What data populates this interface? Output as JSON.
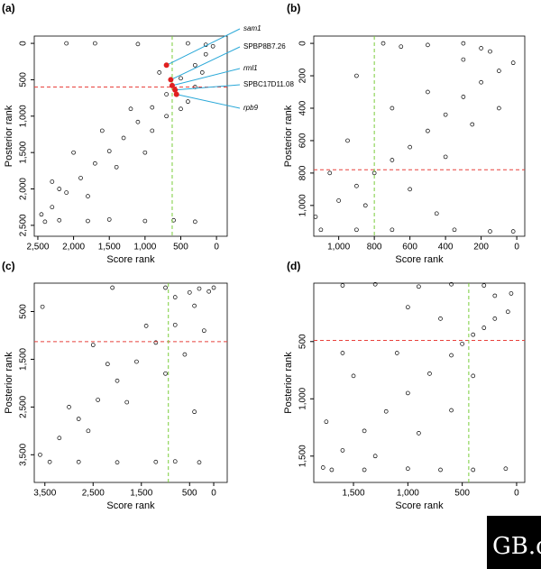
{
  "chart_data": [
    {
      "type": "scatter",
      "label": "(a)",
      "xlabel": "Score rank",
      "ylabel": "Posterior rank",
      "color": "#000000",
      "xlim": [
        2550,
        -150
      ],
      "ylim": [
        2650,
        -100
      ],
      "xticks": [
        {
          "value": 2500,
          "label": "2,500"
        },
        {
          "value": 2000,
          "label": "2,000"
        },
        {
          "value": 1500,
          "label": "1,500"
        },
        {
          "value": 1000,
          "label": "1,000"
        },
        500,
        0
      ],
      "yticks": [
        0,
        500,
        {
          "value": 1000,
          "label": "1,000"
        },
        {
          "value": 1500,
          "label": "1,500"
        },
        {
          "value": 2000,
          "label": "2,000"
        },
        {
          "value": 2500,
          "label": "2,500"
        }
      ],
      "x": [
        2450,
        2300,
        2100,
        1900,
        1700,
        1500,
        1300,
        1100,
        900,
        700,
        500,
        300,
        150,
        50,
        2400,
        2200,
        1800,
        1500,
        1000,
        600,
        300,
        2100,
        1700,
        1100,
        400,
        150,
        2300,
        2000,
        1800,
        1400,
        1200,
        900,
        700,
        500,
        800,
        400,
        300,
        200,
        1600,
        1000,
        2200
      ],
      "y": [
        2350,
        2250,
        2050,
        1850,
        1650,
        1480,
        1300,
        1080,
        880,
        700,
        480,
        300,
        150,
        40,
        2450,
        2430,
        2440,
        2420,
        2440,
        2430,
        2450,
        0,
        0,
        10,
        0,
        20,
        1900,
        1500,
        2100,
        1700,
        900,
        1200,
        1000,
        900,
        400,
        800,
        600,
        400,
        1200,
        1500,
        2000
      ],
      "hline": {
        "value": 600,
        "color": "#e8413c"
      },
      "vline": {
        "value": 620,
        "color": "#7acc3a"
      },
      "annotations": [
        {
          "text": "sam1",
          "x": 700,
          "y": 300,
          "style": "italic"
        },
        {
          "text": "SPBP8B7.26",
          "x": 640,
          "y": 500,
          "style": "normal"
        },
        {
          "text": "rml1",
          "x": 620,
          "y": 580,
          "style": "italic"
        },
        {
          "text": "SPBC17D11.08",
          "x": 580,
          "y": 640,
          "style": "normal"
        },
        {
          "text": "rpb9",
          "x": 560,
          "y": 700,
          "style": "italic"
        }
      ],
      "annotation_color": "#29a8d8",
      "highlight_color": "#e02020"
    },
    {
      "type": "scatter",
      "label": "(b)",
      "xlabel": "Score rank",
      "ylabel": "Posterior rank",
      "color": "#000000",
      "xlim": [
        1140,
        -45
      ],
      "ylim": [
        1190,
        -45
      ],
      "xticks": [
        {
          "value": 1000,
          "label": "1,000"
        },
        800,
        600,
        400,
        200,
        0
      ],
      "yticks": [
        0,
        200,
        400,
        600,
        800,
        {
          "value": 1000,
          "label": "1,000"
        }
      ],
      "x": [
        1130,
        1000,
        900,
        800,
        700,
        600,
        500,
        400,
        300,
        200,
        100,
        20,
        1100,
        900,
        700,
        350,
        150,
        20,
        750,
        650,
        500,
        300,
        200,
        1050,
        950,
        850,
        700,
        600,
        500,
        400,
        300,
        250,
        150,
        100,
        900,
        450
      ],
      "y": [
        1070,
        970,
        880,
        800,
        720,
        640,
        540,
        440,
        330,
        240,
        170,
        120,
        1150,
        1150,
        1150,
        1150,
        1160,
        1160,
        0,
        20,
        10,
        0,
        30,
        800,
        600,
        1000,
        400,
        900,
        300,
        700,
        100,
        500,
        50,
        400,
        200,
        1050
      ],
      "hline": {
        "value": 780,
        "color": "#e8413c"
      },
      "vline": {
        "value": 800,
        "color": "#7acc3a"
      }
    },
    {
      "type": "scatter",
      "label": "(c)",
      "xlabel": "Score rank",
      "ylabel": "Posterior rank",
      "color": "#000000",
      "xlim": [
        3720,
        -280
      ],
      "ylim": [
        4080,
        -95
      ],
      "xticks": [
        {
          "value": 3500,
          "label": "3,500"
        },
        {
          "value": 2500,
          "label": "2,500"
        },
        {
          "value": 1500,
          "label": "1,500"
        },
        500,
        0
      ],
      "yticks": [
        500,
        {
          "value": 1500,
          "label": "1,500"
        },
        {
          "value": 2500,
          "label": "2,500"
        },
        {
          "value": 3500,
          "label": "3,500"
        }
      ],
      "x": [
        3600,
        3200,
        2800,
        2400,
        2000,
        1600,
        1200,
        800,
        400,
        100,
        0,
        3400,
        2800,
        2000,
        1200,
        800,
        300,
        1000,
        2100,
        300,
        500,
        3000,
        2600,
        2200,
        1800,
        1400,
        1000,
        800,
        600,
        400,
        200,
        3550,
        2500
      ],
      "y": [
        3500,
        3150,
        2750,
        2350,
        1950,
        1550,
        1150,
        780,
        380,
        80,
        0,
        3650,
        3650,
        3660,
        3650,
        3640,
        3660,
        0,
        0,
        20,
        100,
        2500,
        3000,
        1600,
        2400,
        800,
        1800,
        200,
        1400,
        2600,
        900,
        400,
        1200
      ],
      "hline": {
        "value": 1130,
        "color": "#e8413c"
      },
      "vline": {
        "value": 940,
        "color": "#7acc3a"
      }
    },
    {
      "type": "scatter",
      "label": "(d)",
      "xlabel": "Score rank",
      "ylabel": "Posterior rank",
      "color": "#000000",
      "xlim": [
        1865,
        -75
      ],
      "ylim": [
        1730,
        -10
      ],
      "xticks": [
        {
          "value": 1500,
          "label": "1,500"
        },
        {
          "value": 1000,
          "label": "1,000"
        },
        500,
        0
      ],
      "yticks": [
        500,
        {
          "value": 1000,
          "label": "1,000"
        },
        {
          "value": 1500,
          "label": "1,500"
        }
      ],
      "x": [
        1780,
        1600,
        1400,
        1200,
        1000,
        800,
        600,
        500,
        400,
        300,
        200,
        80,
        1700,
        1400,
        1000,
        700,
        400,
        100,
        1600,
        1300,
        900,
        600,
        300,
        50,
        1750,
        1500,
        1300,
        1100,
        900,
        700,
        600,
        400,
        200,
        1000,
        1600
      ],
      "y": [
        1600,
        1450,
        1280,
        1110,
        950,
        780,
        620,
        520,
        440,
        380,
        300,
        240,
        1620,
        1620,
        1610,
        1620,
        1620,
        1610,
        10,
        0,
        20,
        0,
        10,
        80,
        1200,
        800,
        1500,
        600,
        1300,
        300,
        1100,
        800,
        100,
        200,
        600
      ],
      "hline": {
        "value": 490,
        "color": "#e8413c"
      },
      "vline": {
        "value": 440,
        "color": "#7acc3a"
      }
    }
  ],
  "logo": "GB.c"
}
